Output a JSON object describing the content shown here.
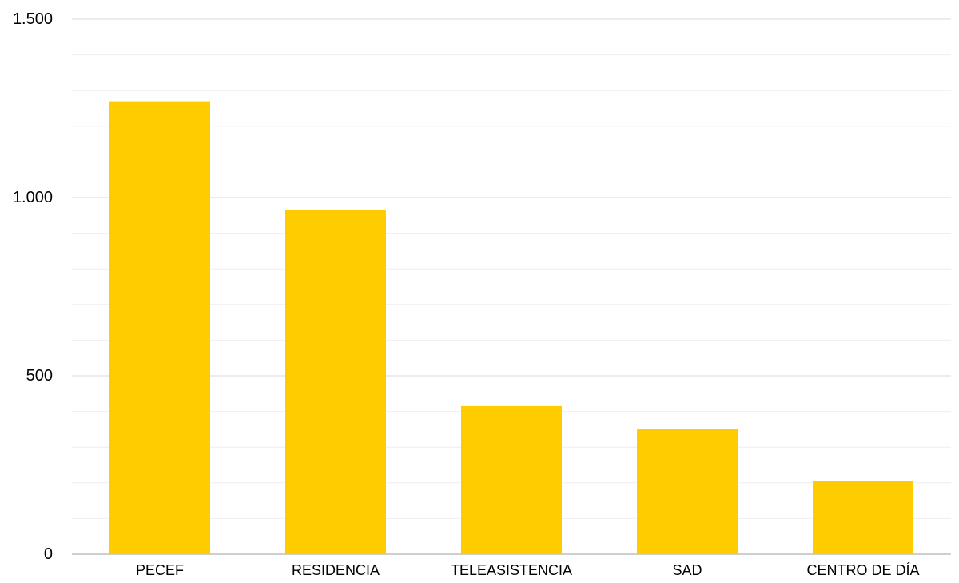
{
  "chart_data": {
    "type": "bar",
    "categories": [
      "PECEF",
      "RESIDENCIA",
      "TELEASISTENCIA",
      "SAD",
      "CENTRO DE DÍA"
    ],
    "values": [
      1270,
      965,
      415,
      350,
      205
    ],
    "ylim": [
      0,
      1500
    ],
    "major_ticks": [
      0,
      500,
      1000,
      1500
    ],
    "major_tick_labels": [
      "0",
      "500",
      "1.000",
      "1.500"
    ],
    "minor_step": 100,
    "grid": true,
    "legend": "none",
    "colors": {
      "bar": "#FFCC00",
      "grid": "#D9D9D9",
      "minor_grid": "#EEEEEE",
      "text": "#000000"
    }
  }
}
